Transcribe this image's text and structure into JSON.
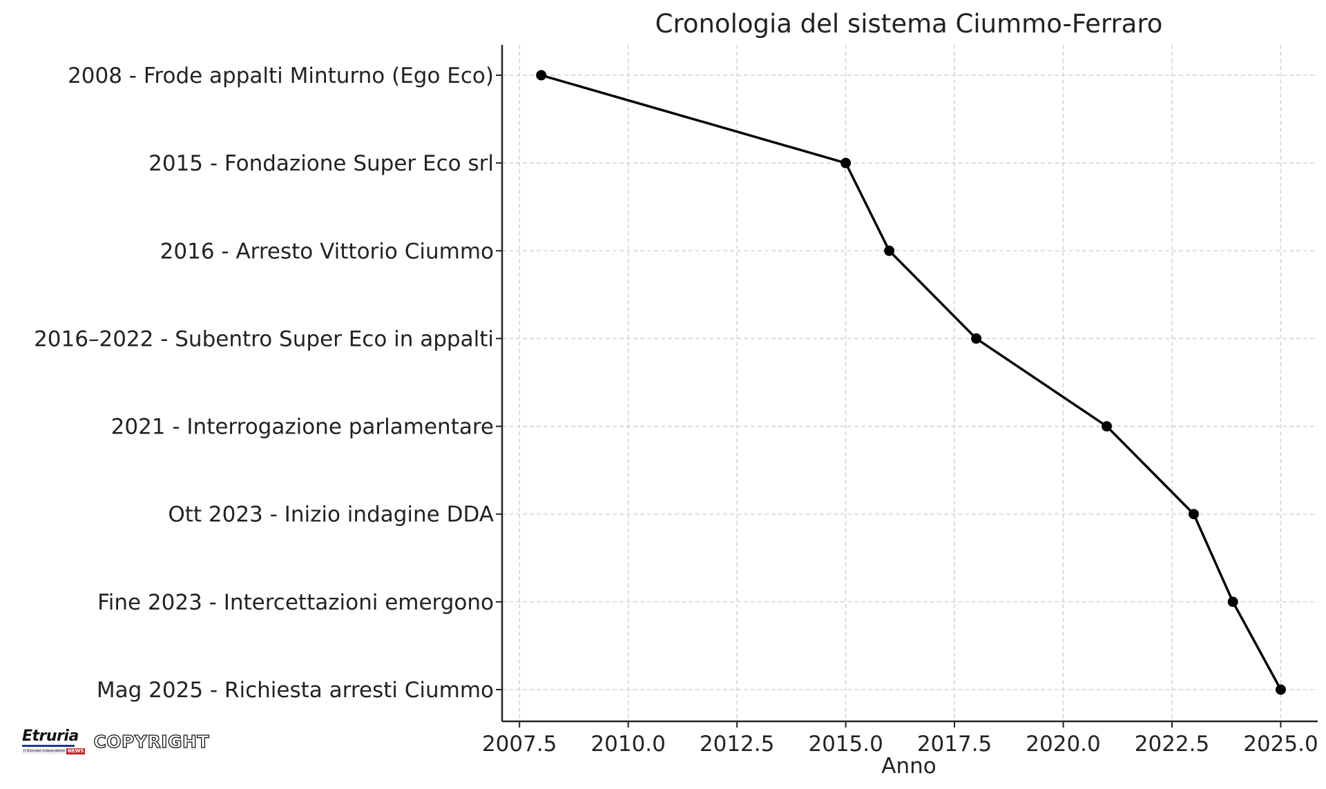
{
  "chart_data": {
    "type": "line",
    "title": "Cronologia del sistema Ciummo-Ferraro",
    "xlabel": "Anno",
    "ylabel": "",
    "xlim": [
      2007.1,
      2025.85
    ],
    "x_ticks": [
      "2007.5",
      "2010.0",
      "2012.5",
      "2015.0",
      "2017.5",
      "2020.0",
      "2022.5",
      "2025.0"
    ],
    "x_tick_values": [
      2007.5,
      2010.0,
      2012.5,
      2015.0,
      2017.5,
      2020.0,
      2022.5,
      2025.0
    ],
    "grid": true,
    "categories": [
      "2008 - Frode appalti Minturno (Ego Eco)",
      "2015 - Fondazione Super Eco srl",
      "2016 - Arresto Vittorio Ciummo",
      "2016–2022 - Subentro Super Eco in appalti",
      "2021 - Interrogazione parlamentare",
      "Ott 2023 - Inizio indagine DDA",
      "Fine 2023 - Intercettazioni emergono",
      "Mag 2025 - Richiesta arresti Ciummo"
    ],
    "series": [
      {
        "x": [
          2008.0,
          2015.0,
          2016.0,
          2018.0,
          2021.0,
          2023.0,
          2023.9,
          2025.0
        ],
        "color": "#000000",
        "marker": "circle"
      }
    ]
  },
  "watermark": {
    "logo_name": "Etruria",
    "logo_tagline": "Il Giornale indipendente",
    "logo_news": "NEWS",
    "copyright": "COPYRIGHT"
  }
}
